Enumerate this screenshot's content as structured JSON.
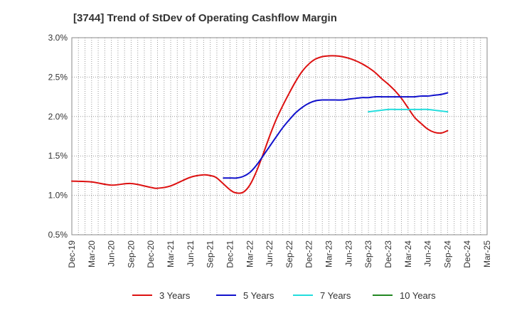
{
  "chart_data": {
    "type": "line",
    "title": "[3744]  Trend of StDev of Operating Cashflow Margin",
    "xlabel": "",
    "ylabel": "",
    "ylim": [
      0.5,
      3.0
    ],
    "y_ticks": [
      "0.5%",
      "1.0%",
      "1.5%",
      "2.0%",
      "2.5%",
      "3.0%"
    ],
    "y_tick_values": [
      0.5,
      1.0,
      1.5,
      2.0,
      2.5,
      3.0
    ],
    "categories": [
      "Dec-19",
      "Mar-20",
      "Jun-20",
      "Sep-20",
      "Dec-20",
      "Mar-21",
      "Jun-21",
      "Sep-21",
      "Dec-21",
      "Mar-22",
      "Jun-22",
      "Sep-22",
      "Dec-22",
      "Mar-23",
      "Jun-23",
      "Sep-23",
      "Dec-23",
      "Mar-24",
      "Jun-24",
      "Sep-24",
      "Dec-24",
      "Mar-25"
    ],
    "grid": true,
    "legend_position": "bottom",
    "series": [
      {
        "name": "3 Years",
        "color": "#dd1111",
        "points": [
          [
            0,
            1.18
          ],
          [
            1,
            1.17
          ],
          [
            2,
            1.13
          ],
          [
            3,
            1.15
          ],
          [
            4,
            1.1
          ],
          [
            4.33,
            1.09
          ],
          [
            5,
            1.12
          ],
          [
            6,
            1.23
          ],
          [
            6.67,
            1.26
          ],
          [
            7,
            1.25
          ],
          [
            7.33,
            1.22
          ],
          [
            8,
            1.07
          ],
          [
            8.33,
            1.03
          ],
          [
            8.67,
            1.04
          ],
          [
            9,
            1.13
          ],
          [
            9.33,
            1.3
          ],
          [
            9.67,
            1.52
          ],
          [
            10,
            1.75
          ],
          [
            10.33,
            1.96
          ],
          [
            10.67,
            2.14
          ],
          [
            11,
            2.3
          ],
          [
            11.33,
            2.45
          ],
          [
            11.67,
            2.58
          ],
          [
            12,
            2.67
          ],
          [
            12.33,
            2.73
          ],
          [
            12.67,
            2.76
          ],
          [
            13,
            2.77
          ],
          [
            13.33,
            2.77
          ],
          [
            13.67,
            2.76
          ],
          [
            14,
            2.74
          ],
          [
            14.33,
            2.71
          ],
          [
            14.67,
            2.67
          ],
          [
            15,
            2.62
          ],
          [
            15.33,
            2.56
          ],
          [
            15.67,
            2.48
          ],
          [
            16,
            2.41
          ],
          [
            16.33,
            2.33
          ],
          [
            16.67,
            2.23
          ],
          [
            17,
            2.11
          ],
          [
            17.33,
            1.99
          ],
          [
            17.67,
            1.91
          ],
          [
            18,
            1.84
          ],
          [
            18.33,
            1.8
          ],
          [
            18.67,
            1.79
          ],
          [
            19,
            1.82
          ]
        ]
      },
      {
        "name": "5 Years",
        "color": "#1111cc",
        "points": [
          [
            7.67,
            1.22
          ],
          [
            8,
            1.22
          ],
          [
            8.33,
            1.22
          ],
          [
            8.67,
            1.24
          ],
          [
            9,
            1.29
          ],
          [
            9.33,
            1.38
          ],
          [
            9.67,
            1.5
          ],
          [
            10,
            1.62
          ],
          [
            10.33,
            1.74
          ],
          [
            10.67,
            1.86
          ],
          [
            11,
            1.96
          ],
          [
            11.33,
            2.05
          ],
          [
            11.67,
            2.12
          ],
          [
            12,
            2.17
          ],
          [
            12.33,
            2.2
          ],
          [
            12.67,
            2.21
          ],
          [
            13,
            2.21
          ],
          [
            13.33,
            2.21
          ],
          [
            13.67,
            2.21
          ],
          [
            14,
            2.22
          ],
          [
            14.33,
            2.23
          ],
          [
            14.67,
            2.24
          ],
          [
            15,
            2.24
          ],
          [
            15.33,
            2.25
          ],
          [
            15.67,
            2.25
          ],
          [
            16,
            2.25
          ],
          [
            16.33,
            2.25
          ],
          [
            16.67,
            2.25
          ],
          [
            17,
            2.25
          ],
          [
            17.33,
            2.25
          ],
          [
            17.67,
            2.26
          ],
          [
            18,
            2.26
          ],
          [
            18.33,
            2.27
          ],
          [
            18.67,
            2.28
          ],
          [
            19,
            2.3
          ]
        ]
      },
      {
        "name": "7 Years",
        "color": "#22dddd",
        "points": [
          [
            15,
            2.06
          ],
          [
            15.33,
            2.07
          ],
          [
            15.67,
            2.08
          ],
          [
            16,
            2.09
          ],
          [
            16.33,
            2.09
          ],
          [
            16.67,
            2.09
          ],
          [
            17,
            2.09
          ],
          [
            17.33,
            2.09
          ],
          [
            17.67,
            2.09
          ],
          [
            18,
            2.09
          ],
          [
            18.33,
            2.08
          ],
          [
            18.67,
            2.07
          ],
          [
            19,
            2.06
          ]
        ]
      },
      {
        "name": "10 Years",
        "color": "#228822",
        "points": []
      }
    ]
  }
}
